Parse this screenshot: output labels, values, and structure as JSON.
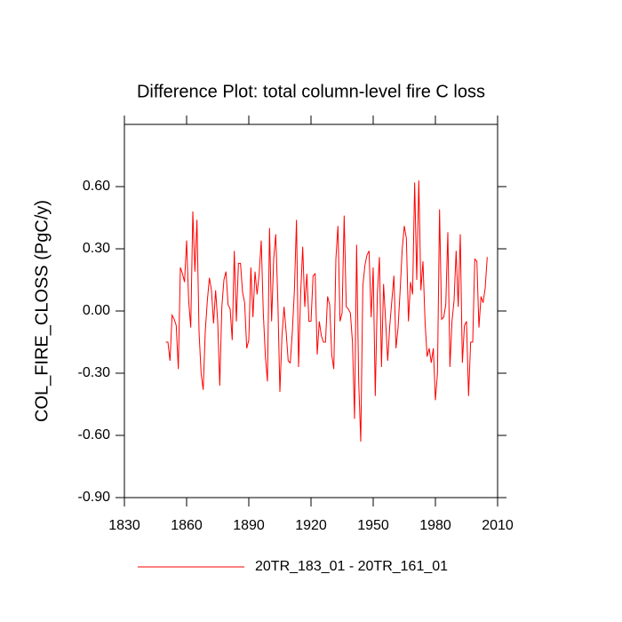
{
  "chart_data": {
    "type": "line",
    "title": "Difference Plot: total column-level fire C loss",
    "y_label": "COL_FIRE_CLOSS  (PgC/y)",
    "x": [
      1850,
      1851,
      1852,
      1853,
      1854,
      1855,
      1856,
      1857,
      1858,
      1859,
      1860,
      1861,
      1862,
      1863,
      1864,
      1865,
      1866,
      1867,
      1868,
      1869,
      1870,
      1871,
      1872,
      1873,
      1874,
      1875,
      1876,
      1877,
      1878,
      1879,
      1880,
      1881,
      1882,
      1883,
      1884,
      1885,
      1886,
      1887,
      1888,
      1889,
      1890,
      1891,
      1892,
      1893,
      1894,
      1895,
      1896,
      1897,
      1898,
      1899,
      1900,
      1901,
      1902,
      1903,
      1904,
      1905,
      1906,
      1907,
      1908,
      1909,
      1910,
      1911,
      1912,
      1913,
      1914,
      1915,
      1916,
      1917,
      1918,
      1919,
      1920,
      1921,
      1922,
      1923,
      1924,
      1925,
      1926,
      1927,
      1928,
      1929,
      1930,
      1931,
      1932,
      1933,
      1934,
      1935,
      1936,
      1937,
      1938,
      1939,
      1940,
      1941,
      1942,
      1943,
      1944,
      1945,
      1946,
      1947,
      1948,
      1949,
      1950,
      1951,
      1952,
      1953,
      1954,
      1955,
      1956,
      1957,
      1958,
      1959,
      1960,
      1961,
      1962,
      1963,
      1964,
      1965,
      1966,
      1967,
      1968,
      1969,
      1970,
      1971,
      1972,
      1973,
      1974,
      1975,
      1976,
      1977,
      1978,
      1979,
      1980,
      1981,
      1982,
      1983,
      1984,
      1985,
      1986,
      1987,
      1988,
      1989,
      1990,
      1991,
      1992,
      1993,
      1994,
      1995,
      1996,
      1997,
      1998,
      1999,
      2000,
      2001,
      2002,
      2003,
      2004,
      2005
    ],
    "series": [
      {
        "name": "20TR_183_01 - 20TR_161_01",
        "color": "#ff0000",
        "values": [
          -0.15,
          -0.15,
          -0.24,
          -0.02,
          -0.04,
          -0.07,
          -0.28,
          0.21,
          0.18,
          0.14,
          0.34,
          0.05,
          -0.08,
          0.48,
          0.19,
          0.44,
          -0.1,
          -0.3,
          -0.38,
          -0.1,
          0.05,
          0.16,
          0.1,
          -0.06,
          0.1,
          -0.05,
          -0.36,
          0.02,
          0.15,
          0.19,
          0.03,
          0.01,
          -0.14,
          0.29,
          -0.05,
          0.23,
          0.23,
          0.09,
          0.04,
          -0.18,
          -0.14,
          0.21,
          -0.03,
          0.19,
          0.08,
          0.18,
          0.34,
          -0.01,
          -0.22,
          -0.34,
          0.4,
          -0.05,
          0.25,
          0.37,
          0.05,
          -0.39,
          -0.12,
          0.02,
          -0.1,
          -0.24,
          -0.25,
          -0.1,
          0.1,
          0.44,
          -0.27,
          0.08,
          0.31,
          0.02,
          0.18,
          -0.05,
          -0.05,
          0.17,
          0.18,
          -0.21,
          -0.05,
          -0.12,
          -0.15,
          -0.15,
          0.07,
          0.03,
          -0.21,
          -0.28,
          0.25,
          0.41,
          -0.05,
          -0.01,
          0.46,
          0.02,
          0.01,
          -0.01,
          -0.15,
          -0.52,
          0.32,
          -0.34,
          -0.63,
          0.12,
          0.22,
          0.27,
          0.29,
          -0.03,
          0.21,
          -0.41,
          0.08,
          0.26,
          -0.27,
          0.13,
          -0.05,
          -0.24,
          -0.07,
          0.05,
          0.17,
          -0.18,
          -0.08,
          0.1,
          0.3,
          0.41,
          0.35,
          -0.05,
          0.14,
          0.08,
          0.62,
          0.15,
          0.63,
          0.1,
          0.24,
          -0.05,
          -0.22,
          -0.18,
          -0.25,
          -0.18,
          -0.43,
          -0.3,
          0.49,
          -0.04,
          -0.03,
          0.03,
          0.38,
          -0.27,
          -0.05,
          0.05,
          0.29,
          0.02,
          0.37,
          -0.25,
          -0.07,
          -0.05,
          -0.41,
          -0.15,
          -0.15,
          0.25,
          0.24,
          -0.08,
          0.07,
          0.04,
          0.11,
          0.26
        ]
      }
    ],
    "xlim": [
      1830,
      2010
    ],
    "xticks": [
      1830,
      1860,
      1890,
      1920,
      1950,
      1980,
      2010
    ],
    "ylim": [
      -0.9,
      0.9
    ],
    "yticks": [
      {
        "value": -0.9,
        "label": "-0.90"
      },
      {
        "value": -0.6,
        "label": "-0.60"
      },
      {
        "value": -0.3,
        "label": "-0.30"
      },
      {
        "value": 0,
        "label": "0.00"
      },
      {
        "value": 0.3,
        "label": "0.30"
      },
      {
        "value": 0.6,
        "label": "0.60"
      }
    ],
    "grid": false,
    "legend": "bottom"
  }
}
